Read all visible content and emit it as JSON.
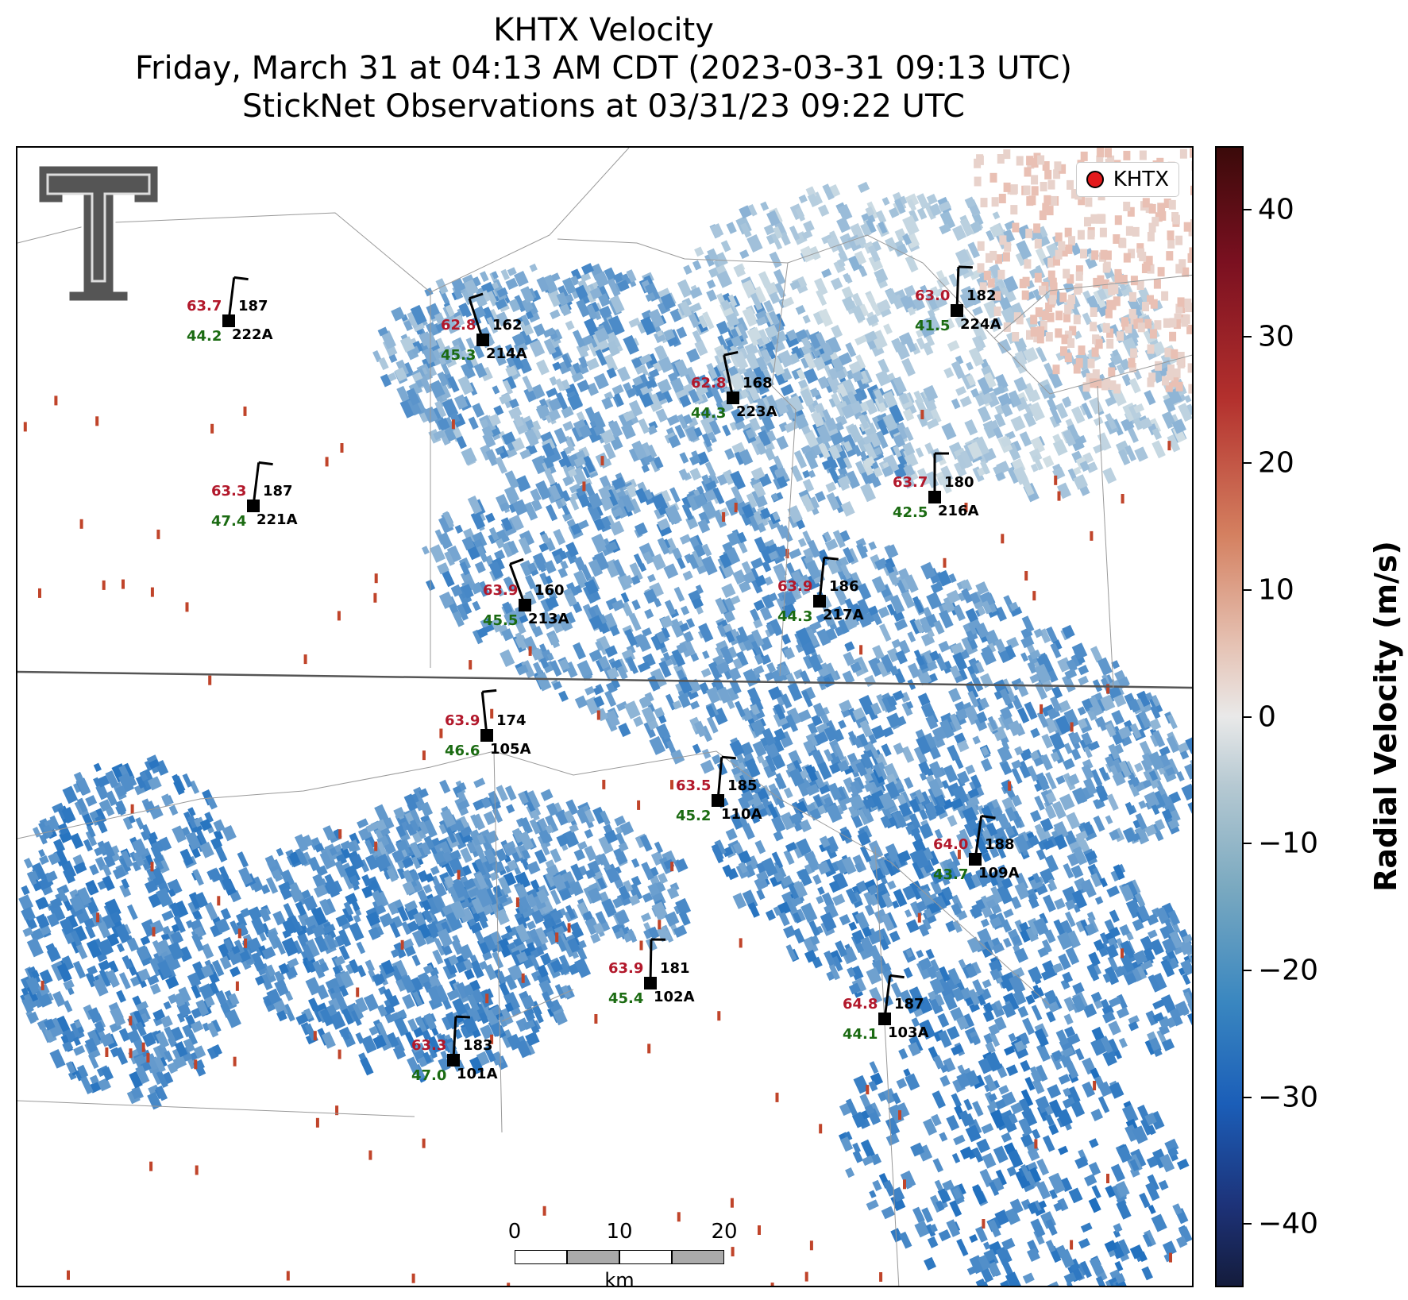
{
  "title": {
    "line1": "KHTX Velocity",
    "line2": "Friday, March 31 at 04:13 AM CDT (2023-03-31 09:13 UTC)",
    "line3": "StickNet Observations at 03/31/23 09:22 UTC"
  },
  "legend": {
    "label": "KHTX",
    "marker_color": "#e31a1c"
  },
  "scalebar": {
    "ticks": [
      "0",
      "10",
      "20"
    ],
    "unit": "km"
  },
  "colorbar": {
    "label": "Radial Velocity (m/s)",
    "ticks": [
      "40",
      "30",
      "20",
      "10",
      "0",
      "−10",
      "−20",
      "−30",
      "−40"
    ],
    "range": [
      -45,
      45
    ],
    "colors": {
      "high": "#3b0a0a",
      "zero": "#e9e9e9",
      "low": "#141c3c"
    }
  },
  "stations": [
    {
      "id": "222A",
      "temp": "63.7",
      "dir": "187",
      "gust": "44.2"
    },
    {
      "id": "214A",
      "temp": "62.8",
      "dir": "162",
      "gust": "45.3"
    },
    {
      "id": "224A",
      "temp": "63.0",
      "dir": "182",
      "gust": "41.5"
    },
    {
      "id": "223A",
      "temp": "62.8",
      "dir": "168",
      "gust": "44.3"
    },
    {
      "id": "221A",
      "temp": "63.3",
      "dir": "187",
      "gust": "47.4"
    },
    {
      "id": "216A",
      "temp": "63.7",
      "dir": "180",
      "gust": "42.5"
    },
    {
      "id": "213A",
      "temp": "63.9",
      "dir": "160",
      "gust": "45.5"
    },
    {
      "id": "217A",
      "temp": "63.9",
      "dir": "186",
      "gust": "44.3"
    },
    {
      "id": "105A",
      "temp": "63.9",
      "dir": "174",
      "gust": "46.6"
    },
    {
      "id": "110A",
      "temp": "63.5",
      "dir": "185",
      "gust": "45.2"
    },
    {
      "id": "109A",
      "temp": "64.0",
      "dir": "188",
      "gust": "43.7"
    },
    {
      "id": "102A",
      "temp": "63.9",
      "dir": "181",
      "gust": "45.4"
    },
    {
      "id": "103A",
      "temp": "64.8",
      "dir": "187",
      "gust": "44.1"
    },
    {
      "id": "101A",
      "temp": "63.3",
      "dir": "183",
      "gust": "47.0"
    }
  ]
}
